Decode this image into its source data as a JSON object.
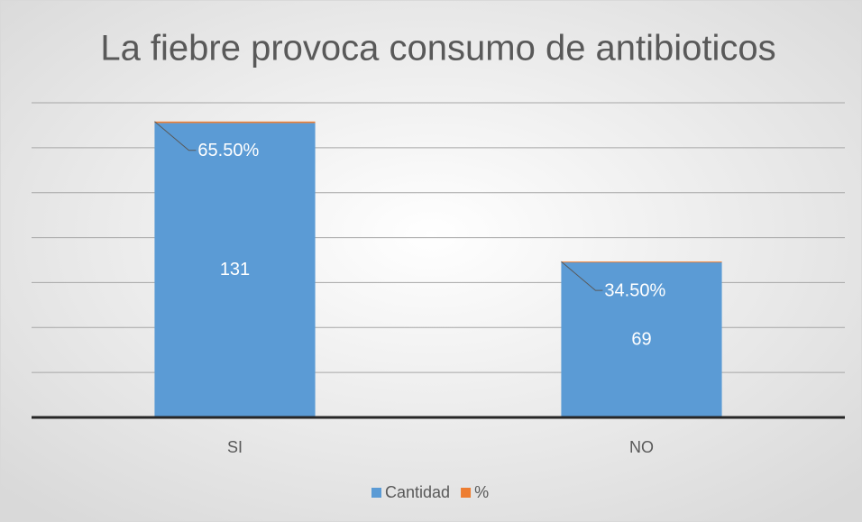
{
  "chart_data": {
    "type": "stacked-bar",
    "title": "La fiebre provoca consumo de antibioticos",
    "categories": [
      "SI",
      "NO"
    ],
    "series": [
      {
        "name": "Cantidad",
        "color": "#5b9bd5",
        "values": [
          131,
          69
        ]
      },
      {
        "name": "%",
        "color": "#ed7d31",
        "values": [
          0.655,
          0.345
        ],
        "value_labels": [
          "65.50%",
          "34.50%"
        ]
      }
    ],
    "ylim": [
      0,
      140
    ],
    "yticks": [
      0,
      20,
      40,
      60,
      80,
      100,
      120,
      140
    ],
    "grid": true,
    "legend": "bottom"
  }
}
